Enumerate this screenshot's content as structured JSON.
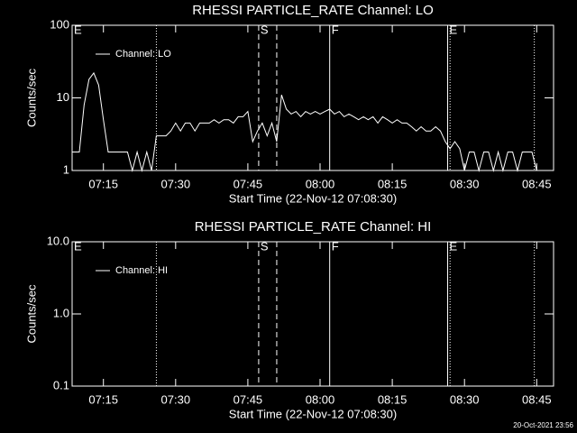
{
  "chart_data": [
    {
      "type": "line",
      "title": "RHESSI PARTICLE_RATE Channel: LO",
      "ylabel": "Counts/sec",
      "xlabel": "Start Time (22-Nov-12 07:08:30)",
      "log_y": true,
      "legend": "upper left",
      "xlim": [
        "07:08:30",
        "08:48:30"
      ],
      "xticks": [
        "07:15",
        "07:30",
        "07:45",
        "08:00",
        "08:15",
        "08:30",
        "08:45"
      ],
      "ylim": [
        1,
        100
      ],
      "yticks": [
        1,
        10,
        100
      ],
      "markers": [
        {
          "x": "07:26",
          "style": "dotted"
        },
        {
          "x": "07:47:15",
          "style": "dashed"
        },
        {
          "x": "07:51",
          "style": "dashed"
        },
        {
          "x": "08:02",
          "style": "solid"
        },
        {
          "x": "08:26:30",
          "style": "solid"
        },
        {
          "x": "08:27",
          "style": "dotted"
        },
        {
          "x": "08:44:30",
          "style": "dotted"
        }
      ],
      "annotations": [
        {
          "text": "E",
          "x": "07:08:30"
        },
        {
          "text": "S",
          "x": "07:47:15"
        },
        {
          "text": "F",
          "x": "08:02"
        },
        {
          "text": "E",
          "x": "08:26:30"
        }
      ],
      "x": [
        "07:08:30",
        "07:10",
        "07:11",
        "07:12",
        "07:13",
        "07:14",
        "07:15",
        "07:16",
        "07:17",
        "07:18",
        "07:19",
        "07:20",
        "07:21",
        "07:22",
        "07:23",
        "07:24",
        "07:25",
        "07:26",
        "07:27",
        "07:28",
        "07:29",
        "07:30",
        "07:31",
        "07:32",
        "07:33",
        "07:34",
        "07:35",
        "07:36",
        "07:37",
        "07:38",
        "07:39",
        "07:40",
        "07:41",
        "07:42",
        "07:43",
        "07:44",
        "07:45",
        "07:46",
        "07:47",
        "07:48",
        "07:49",
        "07:50",
        "07:51",
        "07:52",
        "07:53",
        "07:54",
        "07:55",
        "07:56",
        "07:57",
        "07:58",
        "07:59",
        "08:00",
        "08:01",
        "08:02",
        "08:03",
        "08:04",
        "08:05",
        "08:06",
        "08:07",
        "08:08",
        "08:09",
        "08:10",
        "08:11",
        "08:12",
        "08:13",
        "08:14",
        "08:15",
        "08:16",
        "08:17",
        "08:18",
        "08:19",
        "08:20",
        "08:21",
        "08:22",
        "08:23",
        "08:24",
        "08:25",
        "08:26",
        "08:27",
        "08:28",
        "08:29",
        "08:30",
        "08:31",
        "08:32",
        "08:33",
        "08:34",
        "08:35",
        "08:36",
        "08:37",
        "08:38",
        "08:39",
        "08:40",
        "08:41",
        "08:42",
        "08:43",
        "08:44",
        "08:45"
      ],
      "series": [
        {
          "name": "Channel: LO",
          "color": "#ffffff",
          "values": [
            1.8,
            1.8,
            8,
            18,
            22,
            15,
            5,
            1.8,
            1.8,
            1.8,
            1.8,
            1.8,
            1,
            1.8,
            1,
            1.8,
            1,
            3,
            3,
            3,
            3.5,
            4.5,
            3.5,
            4.5,
            4.5,
            3.5,
            4.5,
            4.5,
            4.5,
            5,
            4.5,
            5,
            5,
            4.5,
            5.5,
            5.5,
            6.5,
            2.5,
            3.5,
            4.5,
            3,
            4.5,
            2.5,
            11,
            7,
            6,
            6.5,
            5.5,
            6.5,
            6,
            6.5,
            6,
            6.5,
            7,
            6,
            6.5,
            5.5,
            6,
            5.5,
            5,
            5.5,
            5,
            5.5,
            4.5,
            5.5,
            5,
            4.5,
            5,
            4.5,
            4.5,
            4,
            3.5,
            4,
            3.5,
            3.5,
            4,
            3.5,
            2.5,
            2,
            2.5,
            2,
            1,
            1.8,
            1.8,
            1,
            1.8,
            1.8,
            1,
            1.8,
            1,
            1.8,
            1.8,
            1,
            1.8,
            1.8,
            1.8,
            1
          ]
        }
      ]
    },
    {
      "type": "line",
      "title": "RHESSI PARTICLE_RATE Channel: HI",
      "ylabel": "Counts/sec",
      "xlabel": "Start Time (22-Nov-12 07:08:30)",
      "log_y": true,
      "legend": "upper left",
      "xlim": [
        "07:08:30",
        "08:48:30"
      ],
      "xticks": [
        "07:15",
        "07:30",
        "07:45",
        "08:00",
        "08:15",
        "08:30",
        "08:45"
      ],
      "ylim": [
        0.1,
        10
      ],
      "yticks": [
        0.1,
        {
          "value": 1,
          "label": "1.0"
        },
        {
          "value": 10,
          "label": "10.0"
        }
      ],
      "markers": [
        {
          "x": "07:26",
          "style": "dotted"
        },
        {
          "x": "07:47:15",
          "style": "dashed"
        },
        {
          "x": "07:51",
          "style": "dashed"
        },
        {
          "x": "08:02",
          "style": "solid"
        },
        {
          "x": "08:26:30",
          "style": "solid"
        },
        {
          "x": "08:27",
          "style": "dotted"
        },
        {
          "x": "08:44:30",
          "style": "dotted"
        }
      ],
      "annotations": [
        {
          "text": "E",
          "x": "07:08:30"
        },
        {
          "text": "S",
          "x": "07:47:15"
        },
        {
          "text": "F",
          "x": "08:02"
        },
        {
          "text": "E",
          "x": "08:26:30"
        }
      ],
      "series": [
        {
          "name": "Channel: HI",
          "color": "#ffffff"
        }
      ]
    }
  ],
  "footer": "20-Oct-2021 23:56"
}
